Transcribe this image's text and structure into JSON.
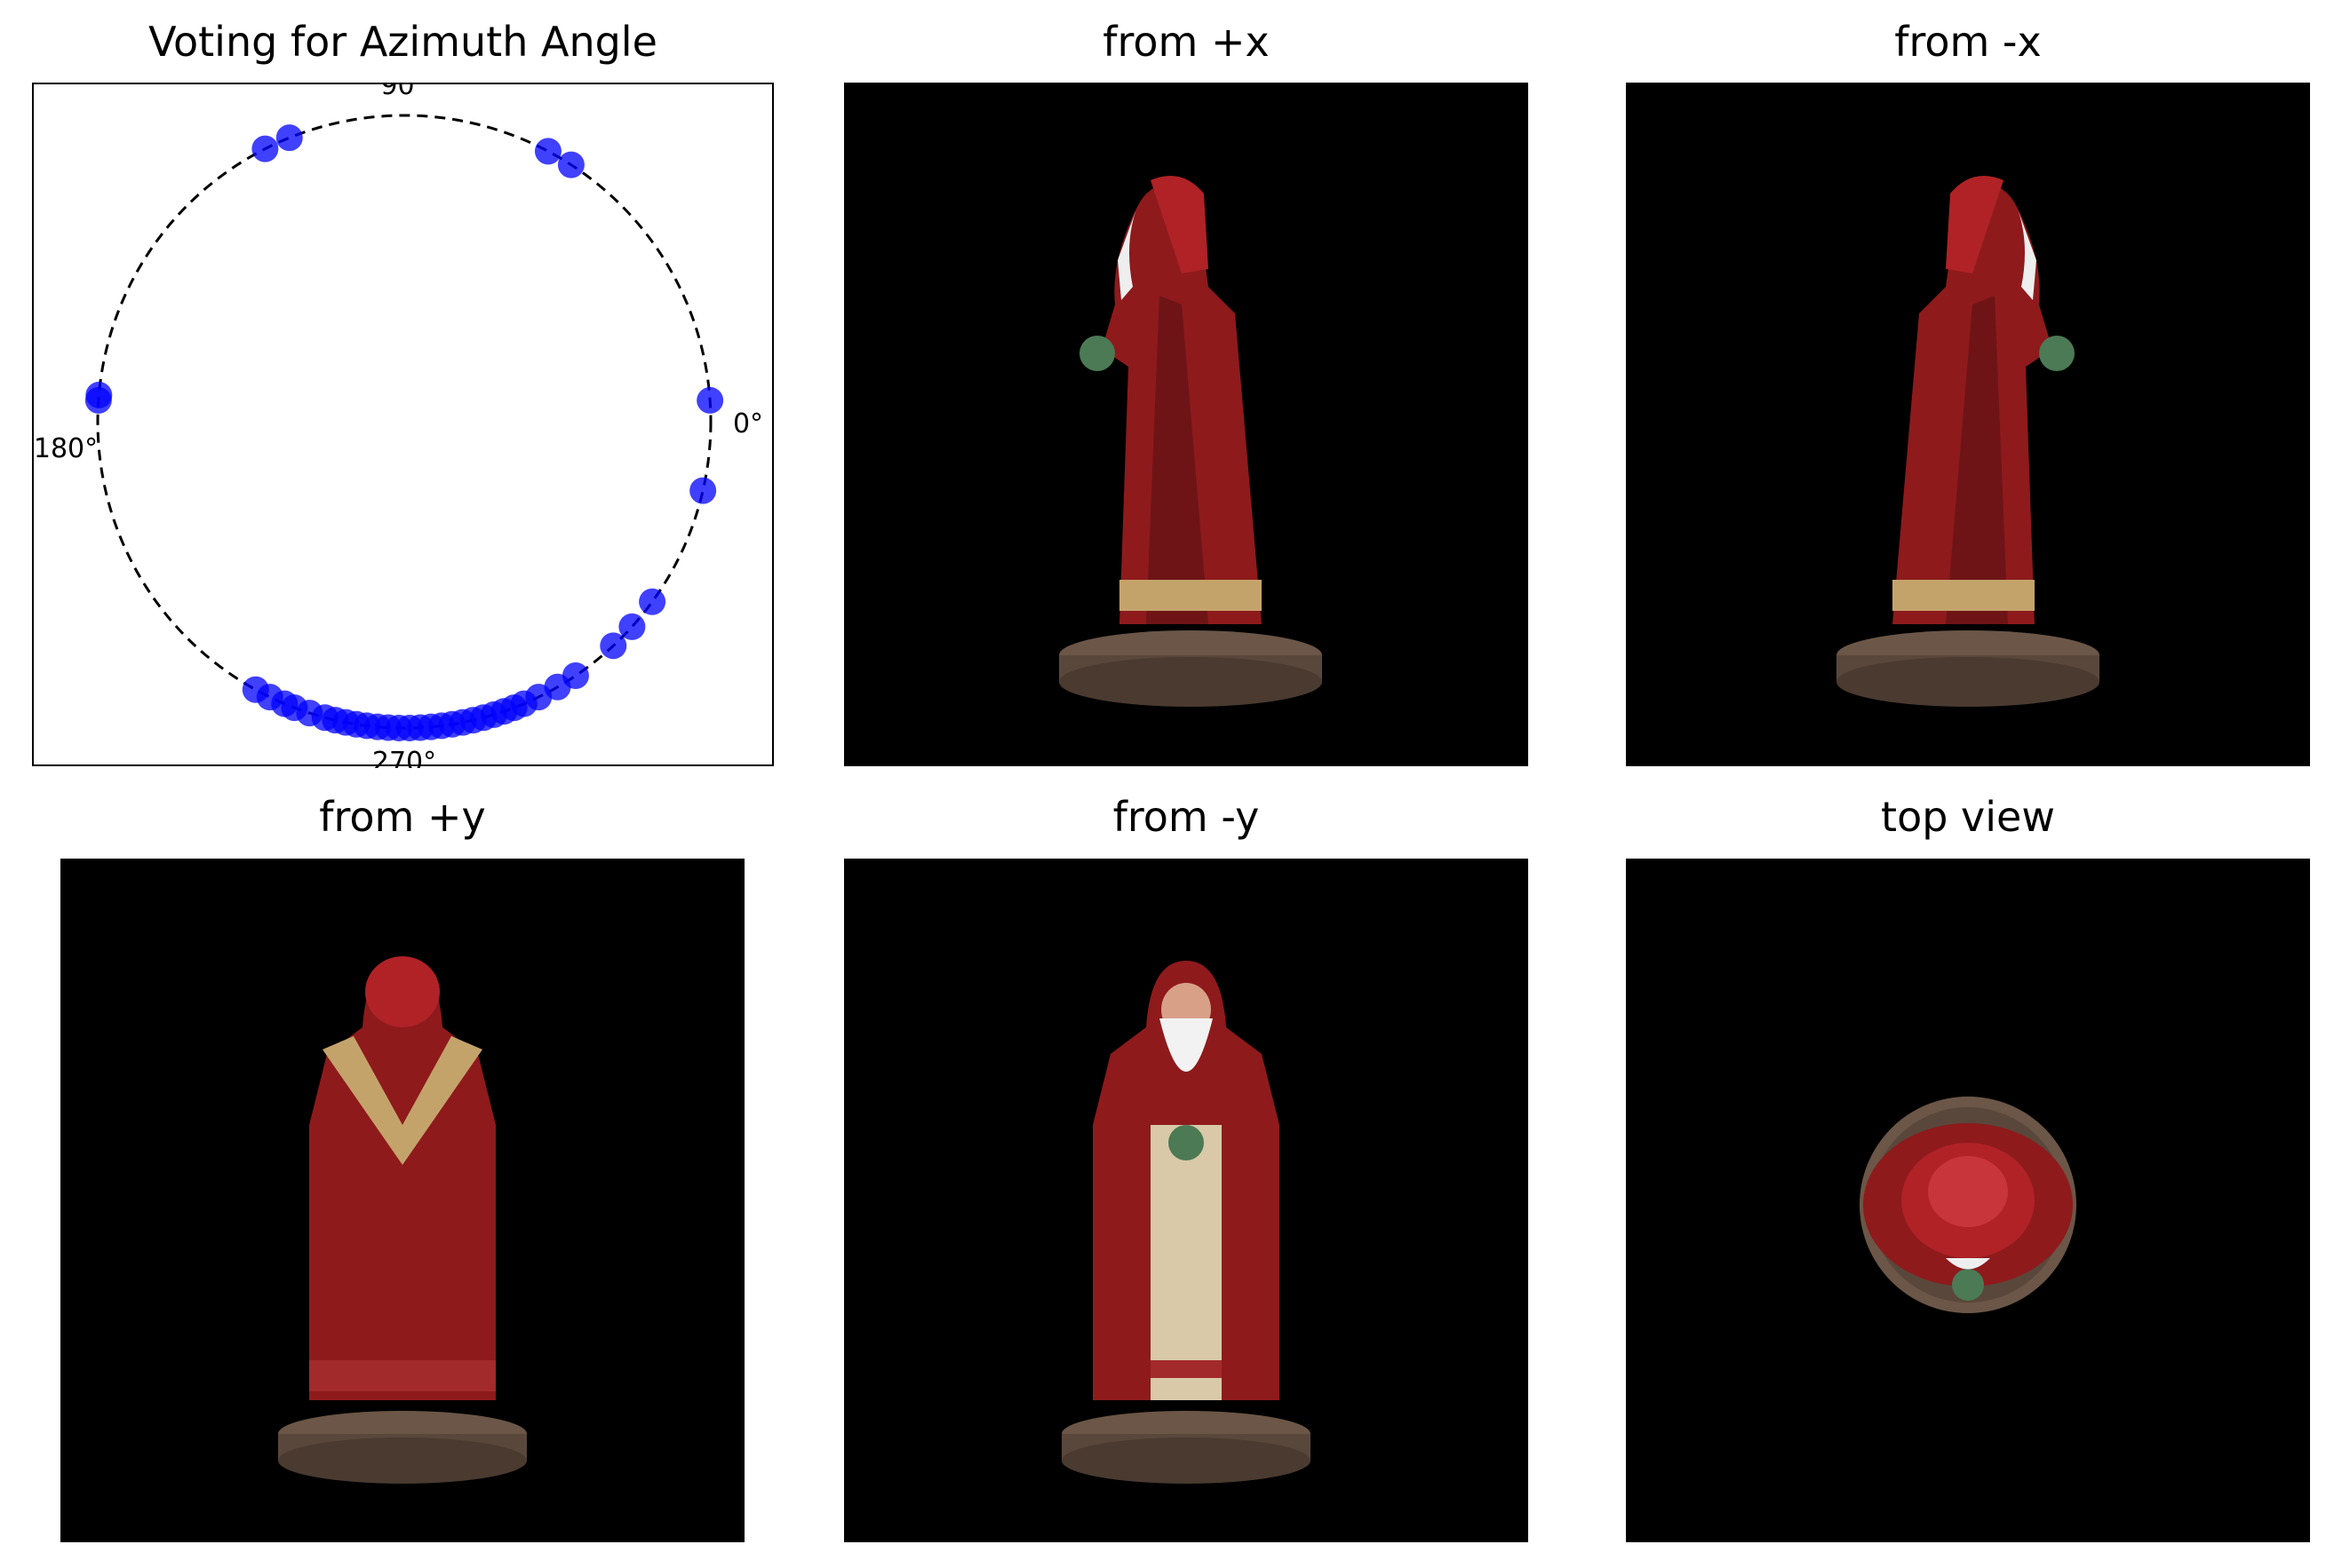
{
  "chart_data": {
    "type": "scatter",
    "title": "Voting for Azimuth Angle",
    "projection": "polar",
    "axes_visible": false,
    "reference_circle": "dashed",
    "angle_labels": [
      "0°",
      "90°",
      "180°",
      "270°"
    ],
    "marker_color": "#0000ff",
    "series": [
      {
        "values_deg": [
          117,
          112,
          62,
          57,
          4,
          347,
          175,
          176,
          324,
          318,
          313,
          304,
          300,
          296,
          293,
          291,
          289,
          287,
          285,
          283,
          281,
          279,
          277,
          275,
          273,
          271,
          269,
          267,
          265,
          263,
          261,
          259,
          257,
          255,
          252,
          249,
          247,
          244,
          241
        ]
      }
    ]
  },
  "views": [
    {
      "title": "from +x",
      "subject": "red-robed-wizard-figurine-side-right"
    },
    {
      "title": "from -x",
      "subject": "red-robed-wizard-figurine-side-left"
    },
    {
      "title": "from +y",
      "subject": "red-robed-wizard-figurine-back"
    },
    {
      "title": "from -y",
      "subject": "red-robed-wizard-figurine-front"
    },
    {
      "title": "top view",
      "subject": "red-robed-wizard-figurine-top"
    }
  ]
}
